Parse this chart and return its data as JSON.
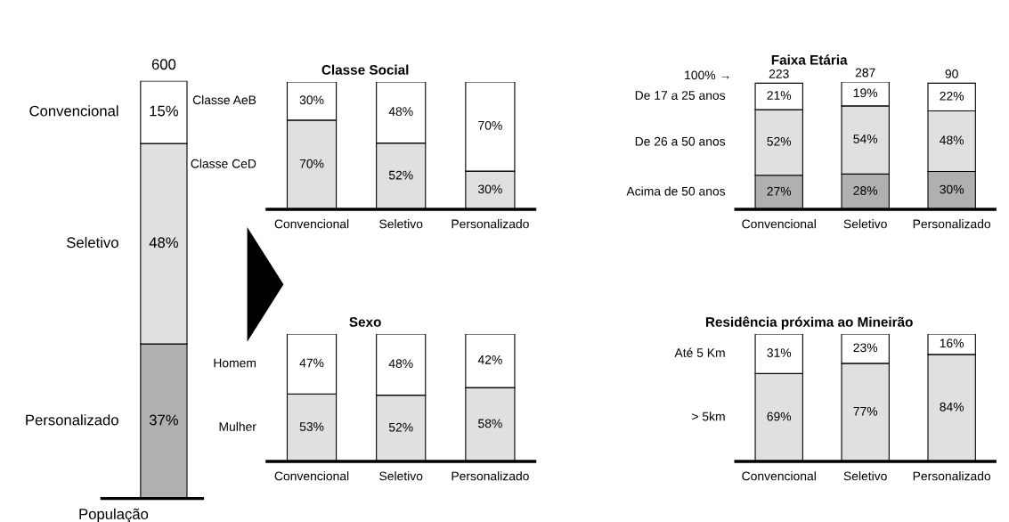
{
  "chart_data": [
    {
      "type": "bar",
      "stacked": true,
      "xlabel": "População",
      "categories": [
        null
      ],
      "annotations": [
        "600"
      ],
      "series": [
        {
          "name": "Personalizado",
          "color": "#b0b0b0",
          "values": [
            37
          ],
          "value_labels": [
            "37%"
          ]
        },
        {
          "name": "Seletivo",
          "color": "#e0e0e0",
          "values": [
            48
          ],
          "value_labels": [
            "48%"
          ]
        },
        {
          "name": "Convencional",
          "color": "#ffffff",
          "values": [
            15
          ],
          "value_labels": [
            "15%"
          ]
        }
      ]
    },
    {
      "type": "bar",
      "stacked": true,
      "title": "Classe Social",
      "categories": [
        "Convencional",
        "Seletivo",
        "Personalizado"
      ],
      "series": [
        {
          "name": "Classe CeD",
          "color": "#e0e0e0",
          "values": [
            70,
            52,
            30
          ],
          "value_labels": [
            "70%",
            "52%",
            "30%"
          ]
        },
        {
          "name": "Classe AeB",
          "color": "#ffffff",
          "values": [
            30,
            48,
            70
          ],
          "value_labels": [
            "30%",
            "48%",
            "70%"
          ]
        }
      ]
    },
    {
      "type": "bar",
      "stacked": true,
      "title": "Faixa Etária",
      "categories": [
        "Convencional",
        "Seletivo",
        "Personalizado"
      ],
      "annotations": [
        "100% →",
        "223",
        "287",
        "90"
      ],
      "series": [
        {
          "name": "Acima de 50 anos",
          "color": "#b0b0b0",
          "values": [
            27,
            28,
            30
          ],
          "value_labels": [
            "27%",
            "28%",
            "30%"
          ]
        },
        {
          "name": "De 26 a 50 anos",
          "color": "#e0e0e0",
          "values": [
            52,
            54,
            48
          ],
          "value_labels": [
            "52%",
            "54%",
            "48%"
          ]
        },
        {
          "name": "De 17 a 25 anos",
          "color": "#ffffff",
          "values": [
            21,
            19,
            22
          ],
          "value_labels": [
            "21%",
            "19%",
            "22%"
          ]
        }
      ]
    },
    {
      "type": "bar",
      "stacked": true,
      "title": "Sexo",
      "categories": [
        "Convencional",
        "Seletivo",
        "Personalizado"
      ],
      "series": [
        {
          "name": "Mulher",
          "color": "#e0e0e0",
          "values": [
            53,
            52,
            58
          ],
          "value_labels": [
            "53%",
            "52%",
            "58%"
          ]
        },
        {
          "name": "Homem",
          "color": "#ffffff",
          "values": [
            47,
            48,
            42
          ],
          "value_labels": [
            "47%",
            "48%",
            "42%"
          ]
        }
      ]
    },
    {
      "type": "bar",
      "stacked": true,
      "title": "Residência próxima ao Mineirão",
      "categories": [
        "Convencional",
        "Seletivo",
        "Personalizado"
      ],
      "series": [
        {
          "name": "> 5km",
          "color": "#e0e0e0",
          "values": [
            69,
            77,
            84
          ],
          "value_labels": [
            "69%",
            "77%",
            "84%"
          ]
        },
        {
          "name": "Até 5 Km",
          "color": "#ffffff",
          "values": [
            31,
            23,
            16
          ],
          "value_labels": [
            "31%",
            "23%",
            "16%"
          ]
        }
      ]
    }
  ]
}
